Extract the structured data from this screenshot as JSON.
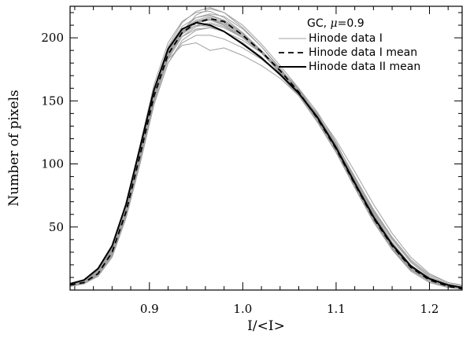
{
  "chart_data": {
    "type": "line",
    "xlabel": "I/<I>",
    "ylabel": "Number of pixels",
    "xlim": [
      0.815,
      1.235
    ],
    "ylim": [
      0,
      225
    ],
    "x_ticks": [
      0.9,
      1.0,
      1.1,
      1.2
    ],
    "x_tick_labels": [
      "0.9",
      "1.0",
      "1.1",
      "1.2"
    ],
    "y_ticks": [
      50,
      100,
      150,
      200
    ],
    "y_tick_labels": [
      "50",
      "100",
      "150",
      "200"
    ],
    "grid": false,
    "legend": {
      "placement": "top-right",
      "title_prefix": "GC, ",
      "title_mu": "μ",
      "title_suffix": "=0.9"
    },
    "x": [
      0.815,
      0.83,
      0.845,
      0.86,
      0.875,
      0.89,
      0.905,
      0.92,
      0.935,
      0.95,
      0.965,
      0.98,
      1.0,
      1.02,
      1.04,
      1.06,
      1.08,
      1.1,
      1.12,
      1.14,
      1.16,
      1.18,
      1.2,
      1.22,
      1.235
    ],
    "series": [
      {
        "name": "Hinode data I",
        "style": "individual",
        "color": "#a0a0a0",
        "members": [
          [
            3,
            5,
            12,
            28,
            60,
            105,
            152,
            185,
            205,
            218,
            223,
            220,
            210,
            195,
            178,
            160,
            138,
            112,
            82,
            55,
            32,
            15,
            6,
            2,
            1
          ],
          [
            4,
            7,
            16,
            34,
            68,
            112,
            158,
            188,
            205,
            213,
            214,
            210,
            201,
            188,
            172,
            155,
            134,
            110,
            83,
            57,
            35,
            18,
            8,
            3,
            1
          ],
          [
            3,
            5,
            11,
            26,
            57,
            100,
            147,
            180,
            198,
            206,
            208,
            205,
            196,
            185,
            170,
            155,
            136,
            113,
            86,
            60,
            37,
            20,
            9,
            3,
            2
          ],
          [
            4,
            6,
            13,
            30,
            63,
            108,
            156,
            188,
            205,
            212,
            214,
            210,
            200,
            188,
            173,
            157,
            137,
            112,
            85,
            58,
            35,
            17,
            7,
            3,
            1
          ],
          [
            3,
            6,
            14,
            32,
            66,
            111,
            159,
            193,
            212,
            221,
            224,
            220,
            208,
            193,
            175,
            157,
            135,
            110,
            82,
            55,
            33,
            16,
            7,
            2,
            1
          ],
          [
            4,
            6,
            12,
            29,
            61,
            106,
            152,
            186,
            206,
            216,
            219,
            217,
            207,
            193,
            176,
            158,
            137,
            112,
            84,
            57,
            34,
            17,
            7,
            3,
            1
          ],
          [
            4,
            7,
            15,
            33,
            67,
            112,
            158,
            189,
            204,
            210,
            209,
            205,
            196,
            184,
            170,
            154,
            136,
            114,
            89,
            63,
            41,
            23,
            11,
            5,
            2
          ],
          [
            3,
            5,
            12,
            28,
            59,
            103,
            150,
            183,
            201,
            209,
            211,
            208,
            200,
            189,
            175,
            159,
            139,
            115,
            87,
            60,
            37,
            19,
            8,
            3,
            1
          ],
          [
            3,
            6,
            13,
            30,
            62,
            107,
            154,
            187,
            204,
            212,
            214,
            211,
            202,
            190,
            175,
            158,
            137,
            112,
            84,
            57,
            34,
            17,
            7,
            3,
            1
          ],
          [
            4,
            7,
            15,
            34,
            69,
            115,
            163,
            196,
            213,
            220,
            221,
            216,
            204,
            189,
            172,
            154,
            133,
            109,
            81,
            54,
            32,
            15,
            6,
            2,
            1
          ],
          [
            3,
            5,
            11,
            27,
            58,
            102,
            148,
            180,
            196,
            202,
            202,
            199,
            192,
            183,
            171,
            157,
            140,
            119,
            94,
            68,
            45,
            26,
            13,
            6,
            3
          ],
          [
            4,
            6,
            13,
            31,
            64,
            108,
            155,
            188,
            206,
            214,
            217,
            214,
            204,
            190,
            174,
            157,
            136,
            111,
            83,
            56,
            33,
            16,
            7,
            2,
            1
          ],
          [
            3,
            6,
            14,
            32,
            65,
            109,
            155,
            186,
            201,
            207,
            208,
            205,
            198,
            188,
            175,
            160,
            141,
            117,
            89,
            61,
            38,
            20,
            9,
            4,
            2
          ],
          [
            4,
            6,
            12,
            29,
            61,
            105,
            151,
            183,
            194,
            196,
            190,
            192,
            186,
            178,
            168,
            154,
            136,
            114,
            88,
            62,
            40,
            22,
            10,
            4,
            2
          ],
          [
            3,
            5,
            12,
            29,
            60,
            104,
            151,
            185,
            204,
            213,
            216,
            213,
            203,
            189,
            173,
            156,
            135,
            110,
            82,
            55,
            33,
            16,
            7,
            3,
            1
          ],
          [
            4,
            7,
            14,
            32,
            66,
            111,
            157,
            189,
            206,
            213,
            215,
            211,
            202,
            189,
            174,
            158,
            138,
            114,
            86,
            59,
            36,
            18,
            8,
            3,
            1
          ],
          [
            3,
            5,
            12,
            28,
            59,
            103,
            150,
            184,
            203,
            212,
            215,
            212,
            203,
            190,
            174,
            157,
            136,
            111,
            83,
            56,
            34,
            17,
            7,
            3,
            1
          ],
          [
            4,
            7,
            15,
            33,
            67,
            112,
            159,
            192,
            209,
            216,
            218,
            214,
            204,
            190,
            174,
            157,
            136,
            111,
            83,
            56,
            33,
            16,
            7,
            2,
            1
          ],
          [
            3,
            6,
            13,
            30,
            63,
            107,
            153,
            186,
            203,
            210,
            212,
            209,
            200,
            188,
            174,
            158,
            139,
            116,
            90,
            64,
            42,
            24,
            12,
            6,
            4
          ]
        ]
      },
      {
        "name": "Hinode data I mean",
        "style": "dashed",
        "color": "#000000",
        "values": [
          4,
          6,
          13,
          30,
          62,
          107,
          154,
          187,
          204,
          212,
          215,
          213,
          202,
          189,
          174,
          157,
          136,
          112,
          84,
          57,
          35,
          18,
          8,
          3,
          1
        ]
      },
      {
        "name": "Hinode data II mean",
        "style": "solid",
        "color": "#000000",
        "values": [
          5,
          8,
          17,
          35,
          68,
          113,
          159,
          191,
          207,
          212,
          210,
          205,
          195,
          184,
          171,
          156,
          137,
          113,
          85,
          58,
          36,
          19,
          9,
          4,
          2
        ]
      }
    ]
  }
}
